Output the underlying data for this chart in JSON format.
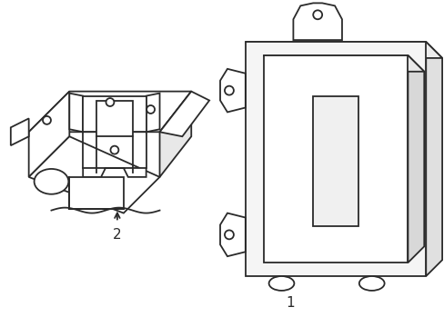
{
  "bg_color": "#ffffff",
  "line_color": "#2a2a2a",
  "line_width": 1.3,
  "figsize": [
    4.89,
    3.6
  ],
  "dpi": 100,
  "label1": "1",
  "label2": "2"
}
